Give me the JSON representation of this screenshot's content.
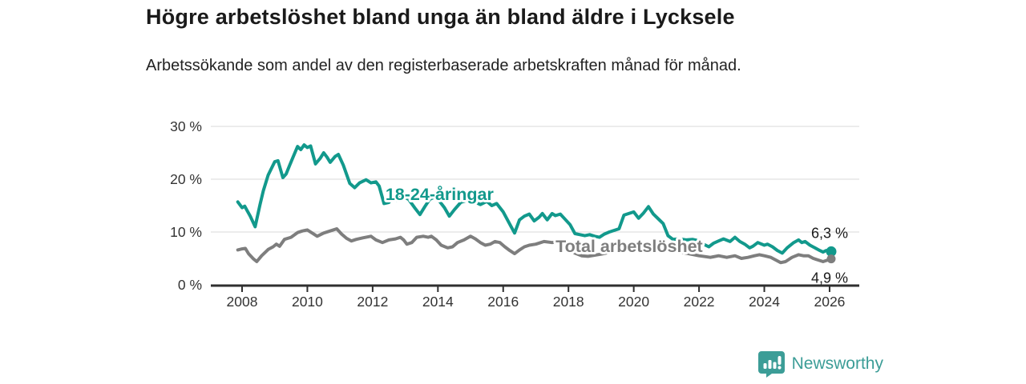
{
  "header": {
    "title": "Högre arbetslöshet bland unga än bland äldre i Lycksele",
    "subtitle": "Arbetssökande som andel av den registerbaserade arbetskraften månad för månad."
  },
  "footer": {
    "brand": "Newsworthy",
    "logo_icon": "bar-chart-speech-bubble-icon",
    "brand_color": "#3c9d97"
  },
  "chart_data": {
    "type": "line",
    "title": "Högre arbetslöshet bland unga än bland äldre i Lycksele",
    "xlabel": "",
    "ylabel": "",
    "x_unit": "year (monthly data)",
    "y_unit": "percent",
    "x_ticks": [
      2008,
      2010,
      2012,
      2014,
      2016,
      2018,
      2020,
      2022,
      2024,
      2026
    ],
    "y_ticks": [
      0,
      10,
      20,
      30
    ],
    "y_tick_labels": [
      "0 %",
      "10 %",
      "20 %",
      "30 %"
    ],
    "xlim": [
      2007.05,
      2026.95
    ],
    "ylim": [
      0,
      30
    ],
    "grid": "horizontal",
    "legend_position": "inline-labels",
    "colors": {
      "young": "#12998c",
      "total": "#7e7e7e",
      "axis": "#2f2f2f",
      "gridline": "#d9d9d9",
      "end_label_text": "#1a1a1a"
    },
    "series": [
      {
        "name": "18-24-åringar",
        "color": "#12998c",
        "line_width": 4,
        "label_pos": {
          "x": 2014.05,
          "y": 17.1
        },
        "end_value": 6.3,
        "end_label": "6,3 %",
        "end_label_dy": -17,
        "x": [
          2007.87,
          2008.0,
          2008.08,
          2008.17,
          2008.25,
          2008.4,
          2008.55,
          2008.65,
          2008.8,
          2009.0,
          2009.1,
          2009.25,
          2009.35,
          2009.45,
          2009.55,
          2009.7,
          2009.8,
          2009.9,
          2010.0,
          2010.1,
          2010.25,
          2010.4,
          2010.5,
          2010.6,
          2010.7,
          2010.85,
          2010.95,
          2011.1,
          2011.3,
          2011.45,
          2011.6,
          2011.8,
          2011.95,
          2012.1,
          2012.2,
          2012.35,
          2012.5,
          2012.6,
          2012.75,
          2012.9,
          2013.1,
          2013.3,
          2013.45,
          2013.6,
          2013.75,
          2013.9,
          2014.05,
          2014.2,
          2014.35,
          2014.5,
          2014.7,
          2014.9,
          2015.1,
          2015.3,
          2015.5,
          2015.65,
          2015.8,
          2016.0,
          2016.2,
          2016.35,
          2016.5,
          2016.65,
          2016.8,
          2016.95,
          2017.1,
          2017.2,
          2017.35,
          2017.5,
          2017.6,
          2017.75,
          2017.9,
          2018.05,
          2018.2,
          2018.35,
          2018.5,
          2018.65,
          2018.8,
          2018.95,
          2019.1,
          2019.25,
          2019.4,
          2019.55,
          2019.7,
          2019.85,
          2020.0,
          2020.15,
          2020.3,
          2020.45,
          2020.6,
          2020.75,
          2020.9,
          2021.05,
          2021.2,
          2021.4,
          2021.6,
          2021.8,
          2021.95,
          2022.1,
          2022.3,
          2022.45,
          2022.6,
          2022.75,
          2022.95,
          2023.1,
          2023.25,
          2023.4,
          2023.55,
          2023.65,
          2023.8,
          2024.0,
          2024.1,
          2024.25,
          2024.4,
          2024.55,
          2024.7,
          2024.9,
          2025.05,
          2025.15,
          2025.25,
          2025.4,
          2025.55,
          2025.7,
          2025.8,
          2025.9,
          2026.05
        ],
        "y": [
          15.7,
          14.6,
          14.9,
          13.9,
          13.0,
          11.0,
          15.2,
          17.8,
          20.8,
          23.3,
          23.5,
          20.3,
          21.0,
          22.5,
          24.0,
          26.2,
          25.6,
          26.5,
          26.0,
          26.3,
          22.9,
          24.0,
          25.0,
          24.2,
          23.2,
          24.3,
          24.7,
          22.7,
          19.2,
          18.4,
          19.3,
          19.9,
          19.3,
          19.5,
          18.7,
          15.4,
          15.6,
          16.5,
          16.0,
          16.8,
          16.2,
          14.5,
          13.3,
          14.8,
          16.2,
          16.6,
          15.8,
          14.6,
          13.0,
          14.2,
          15.6,
          16.0,
          15.8,
          15.2,
          15.8,
          15.0,
          15.4,
          13.8,
          11.5,
          9.8,
          12.3,
          13.0,
          13.4,
          12.1,
          12.8,
          13.5,
          12.3,
          13.5,
          13.1,
          13.4,
          12.4,
          11.4,
          9.7,
          9.5,
          9.3,
          9.5,
          9.2,
          9.0,
          9.6,
          10.0,
          10.3,
          10.6,
          13.2,
          13.5,
          13.8,
          12.6,
          13.6,
          14.8,
          13.4,
          12.5,
          11.6,
          9.3,
          8.6,
          8.7,
          8.5,
          8.6,
          8.4,
          7.8,
          7.2,
          7.9,
          8.3,
          8.7,
          8.2,
          9.0,
          8.2,
          7.7,
          7.0,
          7.3,
          8.0,
          7.5,
          7.7,
          7.2,
          6.5,
          6.0,
          7.0,
          8.0,
          8.5,
          8.0,
          8.2,
          7.5,
          7.0,
          6.5,
          6.2,
          6.5,
          6.3
        ]
      },
      {
        "name": "Total arbetslöshet",
        "color": "#7e7e7e",
        "line_width": 4,
        "label_pos": {
          "x": 2019.86,
          "y": 7.27
        },
        "end_value": 4.9,
        "end_label": "4,9 %",
        "end_label_dy": 22,
        "x": [
          2007.87,
          2008.0,
          2008.1,
          2008.2,
          2008.35,
          2008.45,
          2008.6,
          2008.8,
          2008.95,
          2009.05,
          2009.15,
          2009.3,
          2009.5,
          2009.7,
          2009.85,
          2010.0,
          2010.15,
          2010.3,
          2010.5,
          2010.7,
          2010.9,
          2011.05,
          2011.2,
          2011.35,
          2011.5,
          2011.7,
          2011.95,
          2012.1,
          2012.3,
          2012.5,
          2012.7,
          2012.85,
          2012.95,
          2013.05,
          2013.2,
          2013.35,
          2013.55,
          2013.7,
          2013.8,
          2013.95,
          2014.1,
          2014.3,
          2014.45,
          2014.6,
          2014.8,
          2015.0,
          2015.15,
          2015.3,
          2015.45,
          2015.6,
          2015.75,
          2015.9,
          2016.05,
          2016.2,
          2016.35,
          2016.5,
          2016.65,
          2016.8,
          2017.0,
          2017.25,
          2017.5,
          2017.65,
          2017.8,
          2018.0,
          2018.2,
          2018.4,
          2018.6,
          2018.8,
          2019.0,
          2019.3,
          2019.6,
          2019.9,
          2020.2,
          2020.45,
          2020.7,
          2020.95,
          2021.2,
          2021.5,
          2021.75,
          2022.0,
          2022.35,
          2022.6,
          2022.85,
          2023.1,
          2023.3,
          2023.5,
          2023.7,
          2023.85,
          2024.0,
          2024.2,
          2024.35,
          2024.5,
          2024.65,
          2024.85,
          2025.05,
          2025.2,
          2025.35,
          2025.5,
          2025.65,
          2025.8,
          2025.95,
          2026.05
        ],
        "y": [
          6.6,
          6.8,
          6.9,
          5.9,
          4.9,
          4.4,
          5.5,
          6.7,
          7.2,
          7.7,
          7.3,
          8.6,
          9.0,
          9.9,
          10.2,
          10.4,
          9.8,
          9.2,
          9.8,
          10.2,
          10.6,
          9.6,
          8.8,
          8.3,
          8.6,
          8.9,
          9.2,
          8.5,
          8.0,
          8.5,
          8.7,
          9.0,
          8.5,
          7.7,
          8.0,
          9.0,
          9.2,
          9.0,
          9.2,
          8.5,
          7.5,
          7.0,
          7.2,
          8.0,
          8.5,
          9.2,
          8.7,
          8.0,
          7.5,
          7.7,
          8.2,
          8.0,
          7.2,
          6.5,
          5.9,
          6.6,
          7.2,
          7.5,
          7.7,
          8.2,
          8.0,
          8.1,
          7.5,
          6.8,
          6.0,
          5.5,
          5.4,
          5.6,
          5.8,
          6.2,
          6.4,
          6.8,
          7.2,
          7.5,
          7.3,
          7.0,
          6.6,
          6.1,
          5.8,
          5.5,
          5.2,
          5.5,
          5.2,
          5.5,
          5.0,
          5.2,
          5.5,
          5.7,
          5.5,
          5.2,
          4.7,
          4.2,
          4.4,
          5.2,
          5.7,
          5.5,
          5.5,
          5.0,
          4.7,
          4.4,
          4.7,
          4.9
        ]
      }
    ]
  }
}
